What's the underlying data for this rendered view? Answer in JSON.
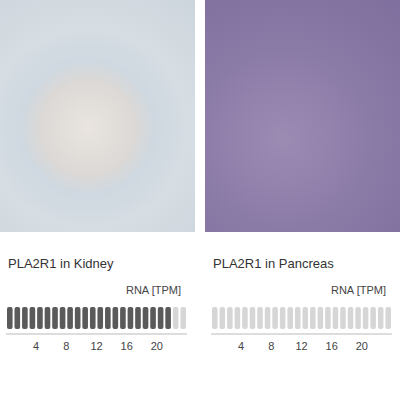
{
  "chart_data": [
    {
      "type": "bar",
      "title": "PLA2R1 in Kidney",
      "x_label": "RNA [TPM]",
      "orientation": "horizontal",
      "categories": [
        null
      ],
      "values": [
        22
      ],
      "color": "#5a5a5a",
      "xlim": [
        0,
        24
      ],
      "xticks": [
        4,
        8,
        12,
        16,
        20
      ],
      "tick_labels": "x"
    },
    {
      "type": "bar",
      "title": "PLA2R1 in Pancreas",
      "x_label": "RNA [TPM]",
      "orientation": "horizontal",
      "categories": [
        null
      ],
      "values": [
        0
      ],
      "color": "#5a5a5a",
      "xlim": [
        0,
        24
      ],
      "xticks": [
        4,
        8,
        12,
        16,
        20
      ],
      "tick_labels": "x"
    }
  ]
}
